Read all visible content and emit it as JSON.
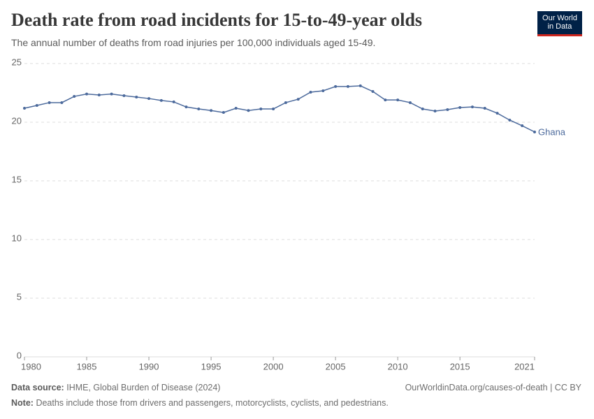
{
  "chart_data": {
    "type": "line",
    "title": "Death rate from road incidents for 15-to-49-year olds",
    "subtitle": "The annual number of deaths from road injuries per 100,000 individuals aged 15-49.",
    "logo": [
      "Our World",
      "in Data"
    ],
    "x": [
      1980,
      1981,
      1982,
      1983,
      1984,
      1985,
      1986,
      1987,
      1988,
      1989,
      1990,
      1991,
      1992,
      1993,
      1994,
      1995,
      1996,
      1997,
      1998,
      1999,
      2000,
      2001,
      2002,
      2003,
      2004,
      2005,
      2006,
      2007,
      2008,
      2009,
      2010,
      2011,
      2012,
      2013,
      2014,
      2015,
      2016,
      2017,
      2018,
      2019,
      2020,
      2021
    ],
    "series": [
      {
        "name": "Ghana",
        "color": "#4c6a9c",
        "values": [
          21.19,
          21.43,
          21.67,
          21.67,
          22.2,
          22.4,
          22.32,
          22.4,
          22.26,
          22.14,
          22.02,
          21.85,
          21.73,
          21.3,
          21.13,
          21.0,
          20.83,
          21.19,
          21.0,
          21.13,
          21.13,
          21.67,
          21.96,
          22.56,
          22.68,
          23.04,
          23.04,
          23.1,
          22.62,
          21.9,
          21.9,
          21.67,
          21.13,
          20.95,
          21.07,
          21.25,
          21.3,
          21.19,
          20.77,
          20.18,
          19.7,
          19.17
        ]
      }
    ],
    "xlim": [
      1980,
      2021
    ],
    "xticks": [
      1980,
      1985,
      1990,
      1995,
      2000,
      2005,
      2010,
      2015,
      2021
    ],
    "ylim": [
      0,
      25
    ],
    "yticks": [
      0,
      5,
      10,
      15,
      20,
      25
    ],
    "grid": true,
    "source_label": "Data source:",
    "source": "IHME, Global Burden of Disease (2024)",
    "url": "OurWorldinData.org/causes-of-death | CC BY",
    "note_label": "Note:",
    "note": "Deaths include those from drivers and passengers, motorcyclists, cyclists, and pedestrians."
  }
}
